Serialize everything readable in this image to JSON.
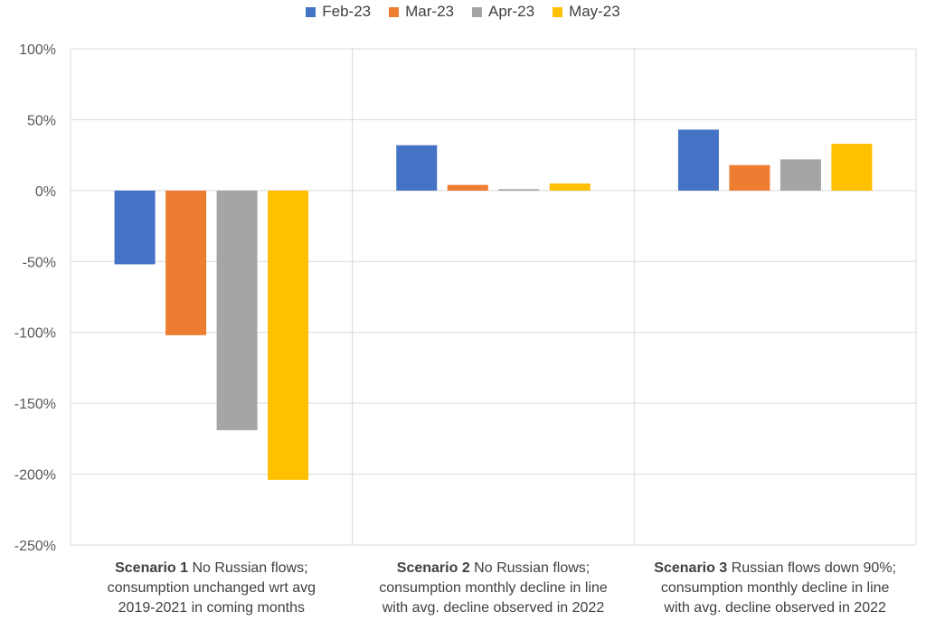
{
  "chart_data": {
    "type": "bar",
    "categories": [
      {
        "bold": "Scenario 1",
        "rest": "No Russian flows;",
        "line2": "consumption unchanged wrt avg",
        "line3": "2019-2021 in coming months"
      },
      {
        "bold": "Scenario 2",
        "rest": "No Russian flows;",
        "line2": "consumption monthly decline in line",
        "line3": "with avg. decline observed in 2022"
      },
      {
        "bold": "Scenario 3",
        "rest": "Russian flows down 90%;",
        "line2": "consumption monthly decline in line",
        "line3": "with avg. decline observed in 2022"
      }
    ],
    "series": [
      {
        "name": "Feb-23",
        "color": "#4472C4",
        "values": [
          -52,
          32,
          43
        ]
      },
      {
        "name": "Mar-23",
        "color": "#ED7D31",
        "values": [
          -102,
          4,
          18
        ]
      },
      {
        "name": "Apr-23",
        "color": "#A5A5A5",
        "values": [
          -169,
          1,
          22
        ]
      },
      {
        "name": "May-23",
        "color": "#FFC000",
        "values": [
          -204,
          5,
          33
        ]
      }
    ],
    "ylim": [
      -250,
      100
    ],
    "yticks": [
      "100%",
      "50%",
      "0%",
      "-50%",
      "-100%",
      "-150%",
      "-200%",
      "-250%"
    ],
    "ytick_values": [
      100,
      50,
      0,
      -50,
      -100,
      -150,
      -200,
      -250
    ],
    "grid": true,
    "legend_position": "top"
  }
}
